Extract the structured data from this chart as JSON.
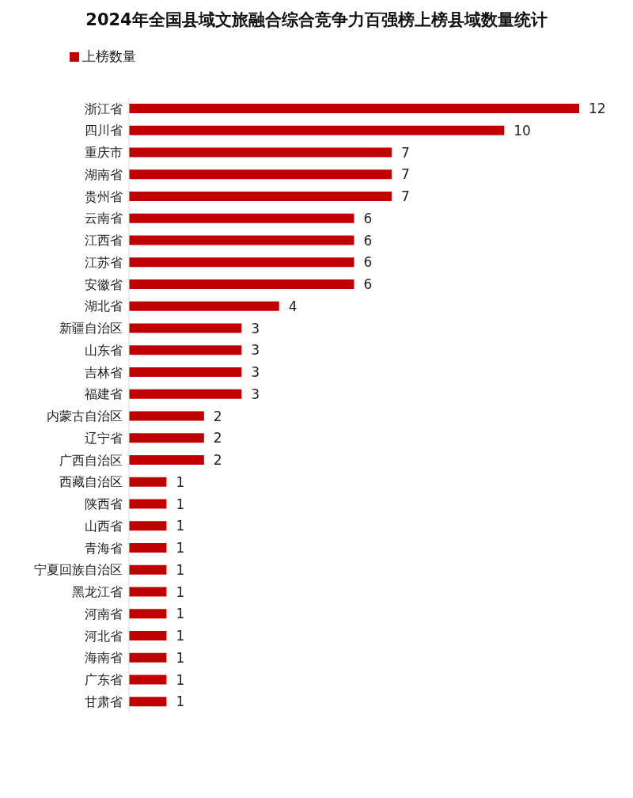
{
  "chart_data": {
    "type": "bar",
    "orientation": "horizontal",
    "title": "2024年全国县域文旅融合综合竞争力百强榜上榜县域数量统计",
    "categories": [
      "浙江省",
      "四川省",
      "重庆市",
      "湖南省",
      "贵州省",
      "云南省",
      "江西省",
      "江苏省",
      "安徽省",
      "湖北省",
      "新疆自治区",
      "山东省",
      "吉林省",
      "福建省",
      "内蒙古自治区",
      "辽宁省",
      "广西自治区",
      "西藏自治区",
      "陕西省",
      "山西省",
      "青海省",
      "宁夏回族自治区",
      "黑龙江省",
      "河南省",
      "河北省",
      "海南省",
      "广东省",
      "甘肃省"
    ],
    "series": [
      {
        "name": "上榜数量",
        "color": "#c00000",
        "values": [
          12,
          10,
          7,
          7,
          7,
          6,
          6,
          6,
          6,
          4,
          3,
          3,
          3,
          3,
          2,
          2,
          2,
          1,
          1,
          1,
          1,
          1,
          1,
          1,
          1,
          1,
          1,
          1
        ]
      }
    ],
    "data_labels": true,
    "legend": "top left",
    "grid": false
  }
}
